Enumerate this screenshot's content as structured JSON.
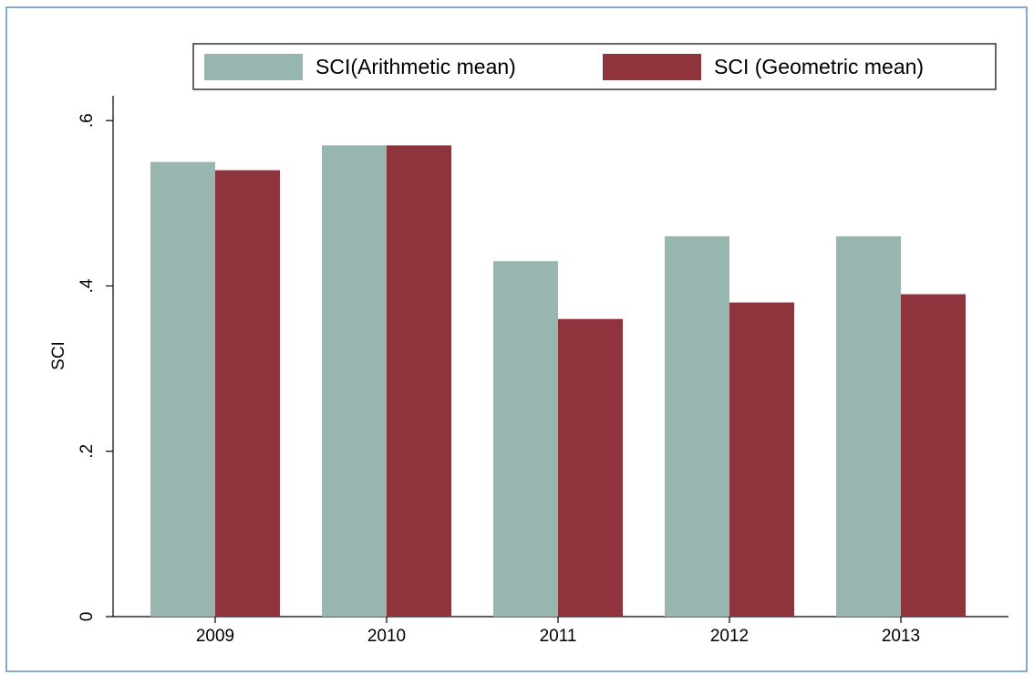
{
  "chart_data": {
    "type": "bar",
    "y_label": "SCI",
    "categories": [
      "2009",
      "2010",
      "2011",
      "2012",
      "2013"
    ],
    "series": [
      {
        "name": "SCI(Arithmetic mean)",
        "color": "#98b6b0",
        "values": [
          0.55,
          0.57,
          0.43,
          0.46,
          0.46
        ]
      },
      {
        "name": "SCI (Geometric mean)",
        "color": "#8f343c",
        "values": [
          0.54,
          0.57,
          0.36,
          0.38,
          0.39
        ]
      }
    ],
    "ylim": [
      0,
      0.63
    ],
    "yticks": [
      0,
      {
        "value": 0.2,
        "label": ".2"
      },
      {
        "value": 0.4,
        "label": ".4"
      },
      {
        "value": 0.6,
        "label": ".6"
      }
    ],
    "grid": false
  }
}
